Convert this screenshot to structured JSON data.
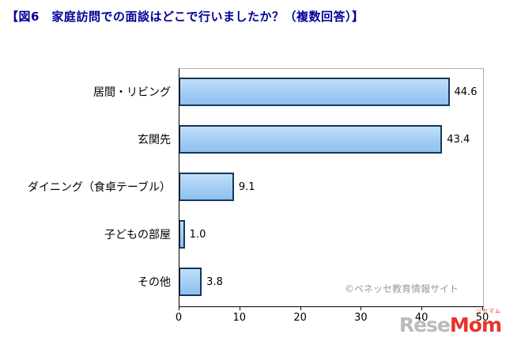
{
  "title": "【図6　家庭訪問での面談はどこで行いましたか？（複数回答）】",
  "chart_data": {
    "type": "bar",
    "orientation": "horizontal",
    "categories": [
      "居間・リビング",
      "玄関先",
      "ダイニング（食卓テーブル）",
      "子どもの部屋",
      "その他"
    ],
    "values": [
      44.6,
      43.4,
      9.1,
      1.0,
      3.8
    ],
    "value_labels": [
      "44.6",
      "43.4",
      "9.1",
      "1.0",
      "3.8"
    ],
    "xlim": [
      0,
      50
    ],
    "x_ticks": [
      0,
      10,
      20,
      30,
      40,
      50
    ],
    "grid": false,
    "legend": "none",
    "bar_fill": "#a3cdf2",
    "bar_border": "#16375e",
    "title_color": "#000099"
  },
  "watermark": "©ベネッセ教育情報サイト",
  "logo": {
    "sub": "リセマム",
    "part1": "Rese",
    "part2": "Mom"
  }
}
